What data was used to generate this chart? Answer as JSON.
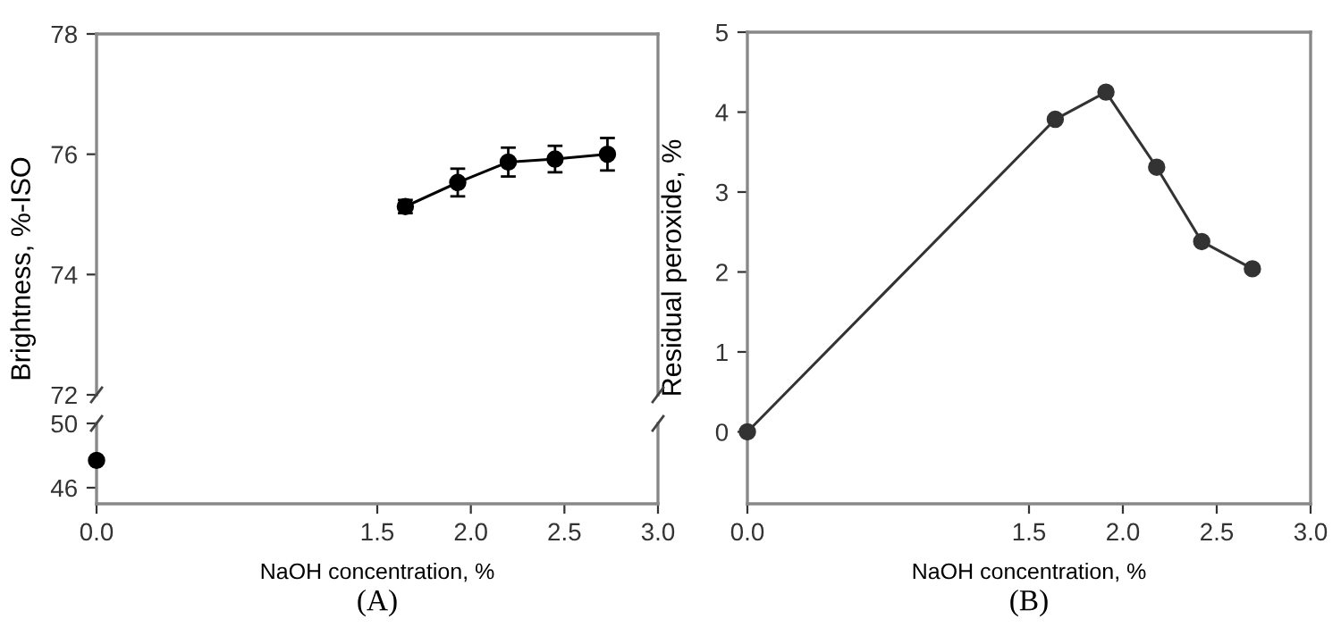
{
  "chart_data": [
    {
      "type": "line",
      "ylabel": "Brightness, %-ISO",
      "x": [
        1.65,
        1.93,
        2.2,
        2.45,
        2.73
      ],
      "series": [
        {
          "color": "#000000",
          "values": [
            75.13,
            75.53,
            75.87,
            75.92,
            76.0
          ],
          "errors": [
            0.11,
            0.23,
            0.24,
            0.22,
            0.27
          ]
        }
      ],
      "xlim": [
        0,
        3
      ],
      "ylim": [
        72,
        78
      ],
      "yticks": [
        72,
        74,
        76,
        78
      ],
      "tick_labels": "y",
      "marker": "circle",
      "line_style": "solid",
      "grid": false,
      "legend": false
    },
    {
      "type": "line",
      "xlabel": "NaOH concentration, %",
      "annotations": [
        "(A)"
      ],
      "x": [
        0
      ],
      "series": [
        {
          "color": "#000000",
          "values": [
            47.7
          ]
        }
      ],
      "xlim": [
        0,
        3
      ],
      "xticks": [
        {
          "value": 0,
          "label": "0.0"
        },
        {
          "value": 1.5,
          "label": "1.5"
        },
        {
          "value": 2,
          "label": "2.0"
        },
        {
          "value": 2.5,
          "label": "2.5"
        },
        {
          "value": 3,
          "label": "3.0"
        }
      ],
      "ylim": [
        45,
        50
      ],
      "yticks": [
        46,
        50
      ],
      "marker": "circle",
      "grid": false,
      "legend": false
    },
    {
      "type": "line",
      "xlabel": "NaOH concentration, %",
      "ylabel": "Residual peroxide, %",
      "annotations": [
        "(B)"
      ],
      "x": [
        0,
        1.64,
        1.91,
        2.18,
        2.42,
        2.69
      ],
      "series": [
        {
          "color": "#333333",
          "values": [
            0,
            3.91,
            4.25,
            3.31,
            2.38,
            2.04
          ]
        }
      ],
      "xlim": [
        0,
        3
      ],
      "xticks": [
        {
          "value": 0,
          "label": "0.0"
        },
        {
          "value": 1.5,
          "label": "1.5"
        },
        {
          "value": 2,
          "label": "2.0"
        },
        {
          "value": 2.5,
          "label": "2.5"
        },
        {
          "value": 3,
          "label": "3.0"
        }
      ],
      "ylim": [
        -0.9,
        5
      ],
      "yticks": [
        0,
        1,
        2,
        3,
        4,
        5
      ],
      "marker": "circle",
      "line_style": "solid",
      "grid": false,
      "legend": false
    }
  ]
}
